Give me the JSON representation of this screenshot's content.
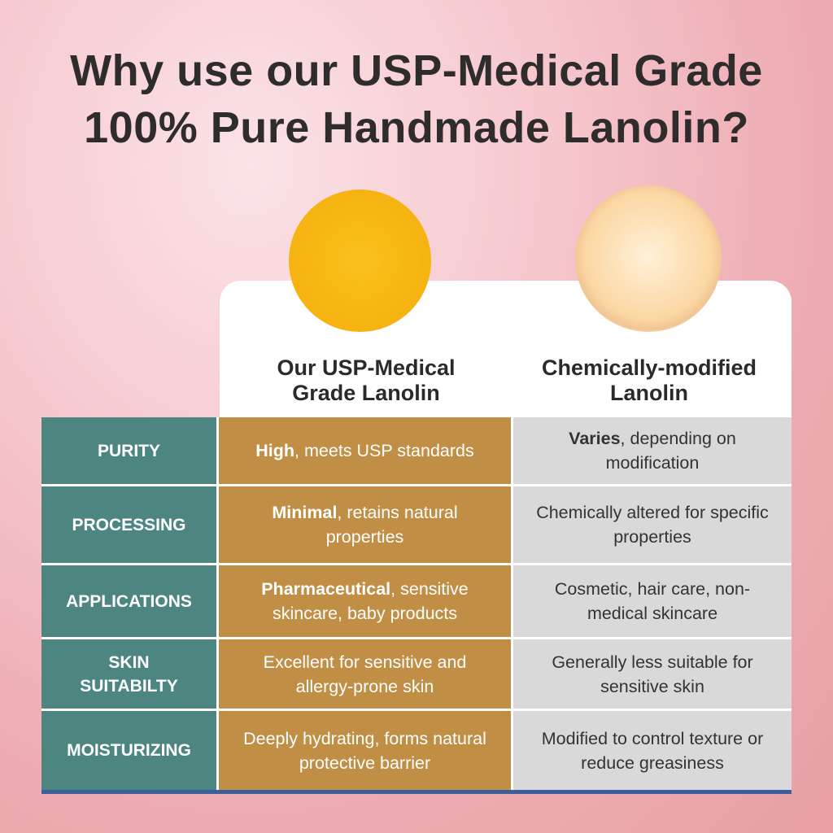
{
  "title": {
    "line1": "Why use our USP-Medical Grade",
    "line2": "100% Pure Handmade Lanolin?"
  },
  "columns": {
    "ours": {
      "line1": "Our USP-Medical",
      "line2": "Grade Lanolin"
    },
    "theirs": {
      "line1": "Chemically-modified",
      "line2": "Lanolin"
    }
  },
  "colors": {
    "label": "#4d8680",
    "ours": "#c08f45",
    "theirs": "#d9d9d9",
    "footer_bar": "#3c5e9c"
  },
  "rows": [
    {
      "label": [
        "PURITY"
      ],
      "ours_bold": "High",
      "ours_rest": ", meets USP standards",
      "theirs_bold": "Varies",
      "theirs_rest": ", depending on modification"
    },
    {
      "label": [
        "PROCESSING"
      ],
      "ours_bold": "Minimal",
      "ours_rest": ", retains natural properties",
      "theirs_bold": "",
      "theirs_rest": "Chemically altered for specific properties"
    },
    {
      "label": [
        "APPLICATIONS"
      ],
      "ours_bold": "Pharmaceutical",
      "ours_rest": ", sensitive skincare, baby products",
      "theirs_bold": "",
      "theirs_rest": "Cosmetic, hair care, non-medical skincare"
    },
    {
      "label": [
        "SKIN",
        "SUITABILTY"
      ],
      "ours_bold": "",
      "ours_rest": "Excellent for sensitive and allergy-prone skin",
      "theirs_bold": "",
      "theirs_rest": "Generally less suitable for sensitive skin"
    },
    {
      "label": [
        "MOISTURIZING"
      ],
      "ours_bold": "",
      "ours_rest": "Deeply hydrating, forms natural protective barrier",
      "theirs_bold": "",
      "theirs_rest": "Modified to control texture or reduce greasiness"
    }
  ]
}
